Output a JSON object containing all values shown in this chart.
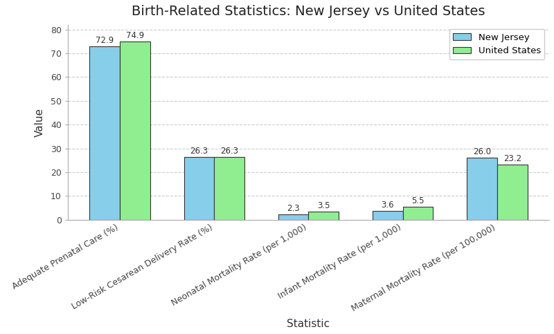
{
  "title": "Birth-Related Statistics: New Jersey vs United States",
  "xlabel": "Statistic",
  "ylabel": "Value",
  "categories": [
    "Adequate Prenatal Care (%)",
    "Low-Risk Cesarean Delivery Rate (%)",
    "Neonatal Mortality Rate (per 1,000)",
    "Infant Mortality Rate (per 1,000)",
    "Maternal Mortality Rate (per 100,000)"
  ],
  "nj_values": [
    72.9,
    26.3,
    2.3,
    3.6,
    26.0
  ],
  "us_values": [
    74.9,
    26.3,
    3.5,
    5.5,
    23.2
  ],
  "nj_color": "#87CEEB",
  "us_color": "#90EE90",
  "nj_label": "New Jersey",
  "us_label": "United States",
  "bar_width": 0.32,
  "title_fontsize": 14,
  "label_fontsize": 11,
  "tick_fontsize": 9,
  "annotation_fontsize": 8.5,
  "background_color": "#ffffff",
  "grid_color": "#cccccc",
  "ylim": [
    0,
    82
  ],
  "yticks": [
    0,
    10,
    20,
    30,
    40,
    50,
    60,
    70,
    80
  ]
}
